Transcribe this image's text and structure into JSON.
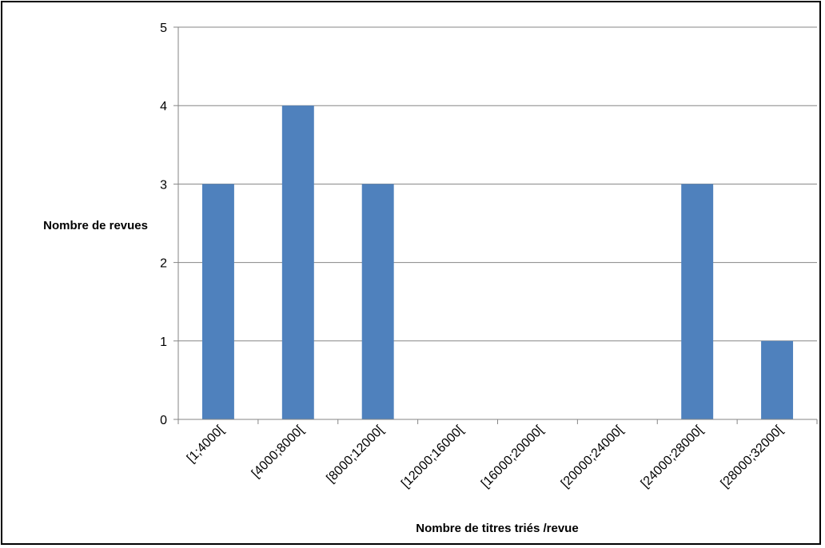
{
  "chart_data": {
    "type": "bar",
    "title": "",
    "xlabel": "Nombre de titres triés /revue",
    "ylabel": "Nombre de revues",
    "categories": [
      "[1;4000[",
      "[4000;8000[",
      "[8000;12000[",
      "[12000;16000[",
      "[16000;20000[",
      "[20000;24000[",
      "[24000;28000[",
      "[28000;32000["
    ],
    "values": [
      3,
      4,
      3,
      0,
      0,
      0,
      3,
      1
    ],
    "ylim": [
      0,
      5
    ],
    "yticks": [
      0,
      1,
      2,
      3,
      4,
      5
    ],
    "grid": true,
    "legend": "none",
    "bar_color": "#4F81BD",
    "grid_color": "#868686",
    "axis_color": "#868686"
  }
}
